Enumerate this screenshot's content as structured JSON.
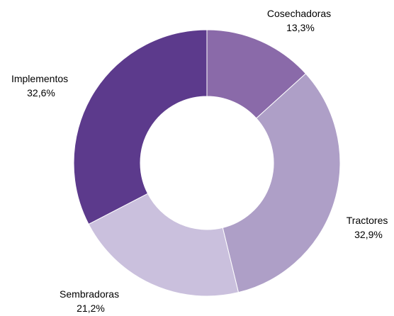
{
  "chart_data": {
    "type": "pie",
    "variant": "donut",
    "start_angle_deg": 0,
    "direction": "clockwise",
    "slices": [
      {
        "label": "Cosechadoras",
        "value": 13.3,
        "value_label": "13,3%",
        "color": "#8a6aa9"
      },
      {
        "label": "Tractores",
        "value": 32.9,
        "value_label": "32,9%",
        "color": "#ae9fc7"
      },
      {
        "label": "Sembradoras",
        "value": 21.2,
        "value_label": "21,2%",
        "color": "#cac0dd"
      },
      {
        "label": "Implementos",
        "value": 32.6,
        "value_label": "32,6%",
        "color": "#5c3a8c"
      }
    ]
  }
}
